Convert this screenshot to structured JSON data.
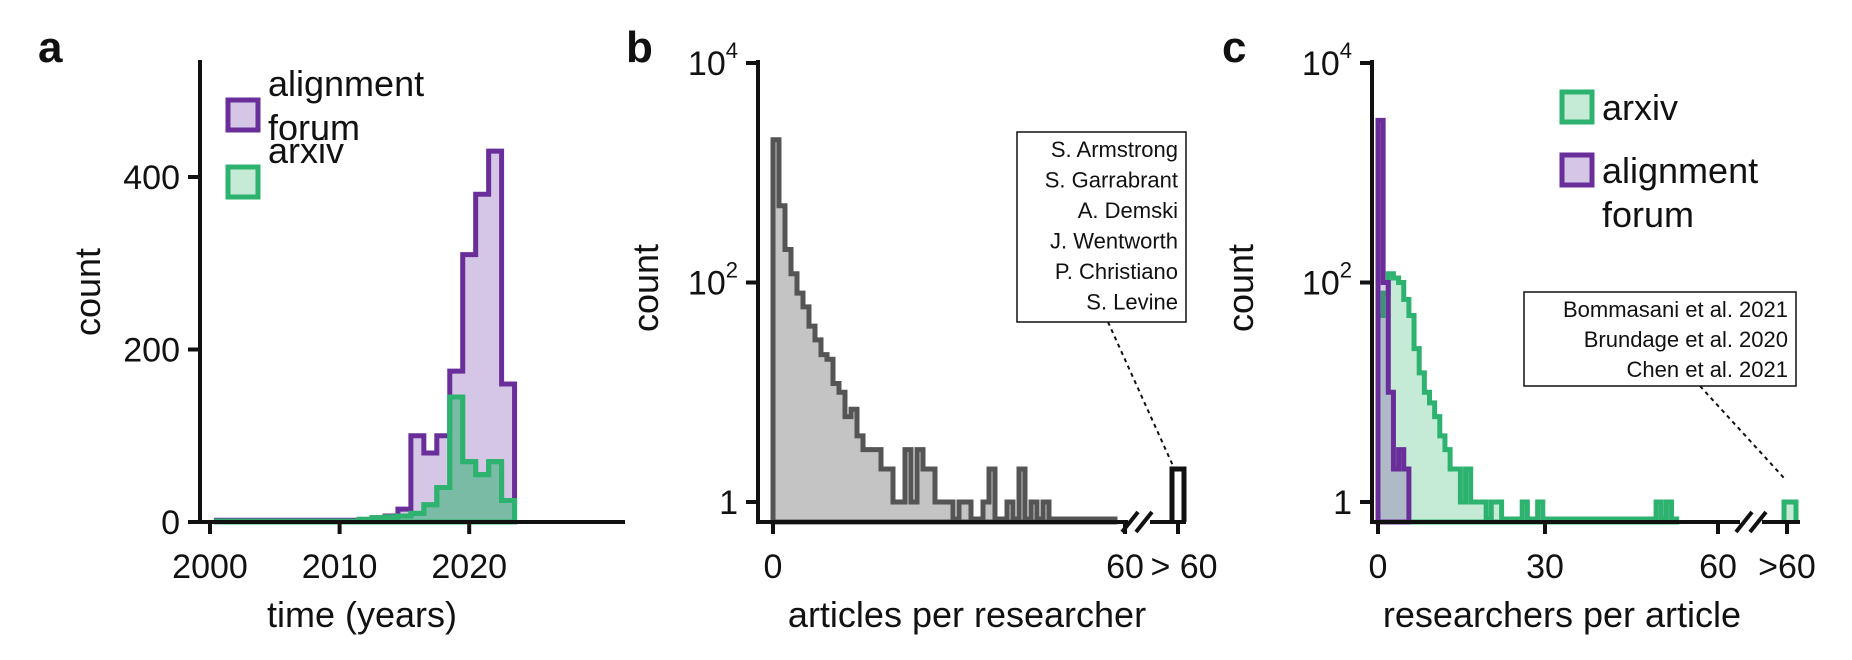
{
  "colors": {
    "alignment_forum_stroke": "#6a2e9a",
    "alignment_forum_fill": "#d6c6e6",
    "arxiv_stroke": "#2db36f",
    "arxiv_fill": "#c5ead6",
    "researcher_stroke": "#555555",
    "researcher_fill": "#c4c4c4"
  },
  "chart_data": [
    {
      "panel": "a",
      "type": "histogram",
      "xlabel": "time (years)",
      "ylabel": "count",
      "xlim": [
        1999,
        2025
      ],
      "ylim": [
        0,
        450
      ],
      "xticks": [
        2000,
        2010,
        2020
      ],
      "xtick_labels": [
        "2000",
        "2010",
        "2020"
      ],
      "yticks": [
        0,
        200,
        400
      ],
      "ytick_labels": [
        "0",
        "200",
        "400"
      ],
      "legend": [
        "alignment forum",
        "arxiv"
      ],
      "legend_lines": [
        [
          "alignment",
          "forum"
        ],
        [
          "arxiv"
        ]
      ],
      "legend_position": "upper-left",
      "series": [
        {
          "name": "alignment forum",
          "edges": [
            2000.5,
            2011.5,
            2012.5,
            2013.5,
            2014.5,
            2015.5,
            2016.5,
            2017.5,
            2018.5,
            2019.5,
            2020.5,
            2021.5,
            2022.5,
            2023.5
          ],
          "counts": [
            2,
            3,
            5,
            7,
            15,
            100,
            80,
            100,
            175,
            310,
            380,
            430,
            160
          ]
        },
        {
          "name": "arxiv",
          "edges": [
            2000.5,
            2011.5,
            2012.5,
            2013.5,
            2014.5,
            2015.5,
            2016.5,
            2017.5,
            2018.5,
            2019.5,
            2020.5,
            2021.5,
            2022.5,
            2023.5
          ],
          "counts": [
            1,
            3,
            5,
            6,
            7,
            10,
            20,
            40,
            145,
            70,
            55,
            70,
            25
          ]
        }
      ]
    },
    {
      "panel": "b",
      "type": "histogram",
      "scale_y": "log",
      "xlabel": "articles per researcher",
      "ylabel": "count",
      "ylim": [
        0.65,
        10000
      ],
      "xticks": [
        0,
        60,
        65
      ],
      "xtick_labels": [
        "0",
        "60",
        "> 60"
      ],
      "yticks": [
        {
          "value": 1,
          "base": "1",
          "exp": ""
        },
        {
          "value": 100,
          "base": "10",
          "exp": "2"
        },
        {
          "value": 10000,
          "base": "10",
          "exp": "4"
        }
      ],
      "axis_break": true,
      "annotation_lines": [
        "S. Armstrong",
        "S. Garrabrant",
        "A. Demski",
        "J. Wentworth",
        "P. Christiano",
        "S. Levine"
      ],
      "series": [
        {
          "name": "",
          "bin_start": 1,
          "counts": [
            2000,
            500,
            200,
            120,
            80,
            60,
            40,
            30,
            22,
            20,
            12,
            10,
            6,
            7,
            4,
            3,
            3,
            3,
            2,
            2,
            1,
            1,
            3,
            1,
            3,
            2,
            2,
            1,
            1,
            1,
            0.7,
            1,
            1,
            0.7,
            0.7,
            1,
            2,
            0.7,
            0.7,
            1,
            0.7,
            2,
            0.7,
            1,
            0.7,
            1,
            0.7,
            0.7,
            0.7,
            0.7,
            0.7,
            0.7,
            0.7,
            0.7,
            0.7,
            0.7,
            0.7
          ],
          "overflow_count": 2
        }
      ]
    },
    {
      "panel": "c",
      "type": "histogram",
      "scale_y": "log",
      "xlabel": "researchers per article",
      "ylabel": "count",
      "ylim": [
        0.65,
        10000
      ],
      "xticks": [
        0,
        30,
        60,
        65
      ],
      "xtick_labels": [
        "0",
        "30",
        "60",
        ">60"
      ],
      "yticks": [
        {
          "value": 1,
          "base": "1",
          "exp": ""
        },
        {
          "value": 100,
          "base": "10",
          "exp": "2"
        },
        {
          "value": 10000,
          "base": "10",
          "exp": "4"
        }
      ],
      "axis_break": true,
      "legend": [
        "arxiv",
        "alignment forum"
      ],
      "legend_lines": [
        [
          "arxiv"
        ],
        [
          "alignment",
          "forum"
        ]
      ],
      "legend_position": "upper-right",
      "annotation_lines": [
        "Bommasani et al. 2021",
        "Brundage et al. 2020",
        "Chen et al. 2021"
      ],
      "series": [
        {
          "name": "arxiv",
          "bin_start": 1,
          "counts": [
            50,
            80,
            120,
            110,
            100,
            70,
            50,
            25,
            15,
            10,
            8,
            6,
            4,
            3,
            2,
            2,
            1,
            2,
            1,
            1,
            1,
            0.7,
            1,
            1,
            0.7,
            0.7,
            0.7,
            0.7,
            1,
            0.7,
            0.7,
            1,
            0.7,
            0.7,
            0.7,
            0.7,
            0.7,
            0.7,
            0.7,
            0.7,
            0.7,
            0.7,
            0.7,
            0.7,
            0.7,
            0.7,
            0.7,
            0.7,
            0.7,
            0.7,
            0.7,
            0.7,
            0.7,
            0.7,
            1,
            0.7,
            1,
            0.7
          ],
          "overflow_count": 1
        },
        {
          "name": "alignment forum",
          "bin_start": 1,
          "counts": [
            3000,
            100,
            10,
            2,
            3,
            2
          ]
        }
      ]
    }
  ]
}
